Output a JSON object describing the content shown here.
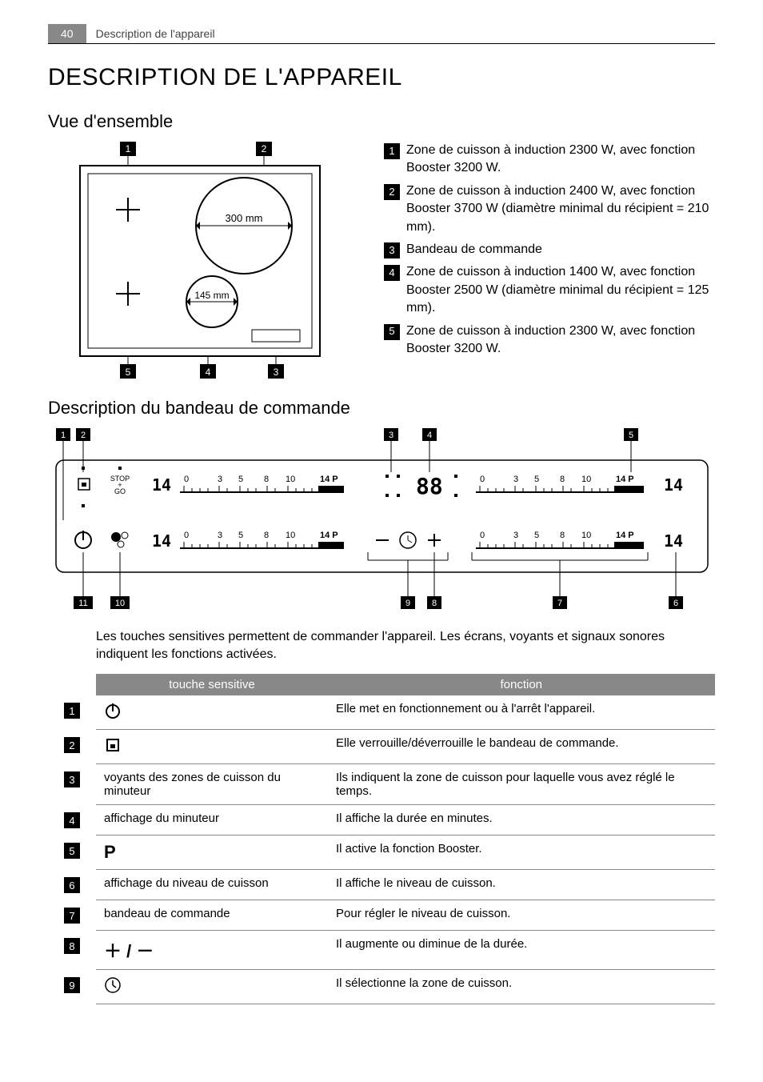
{
  "header": {
    "page_number": "40",
    "section_title": "Description de l'appareil"
  },
  "main_heading": "DESCRIPTION DE L'APPAREIL",
  "overview": {
    "heading": "Vue d'ensemble",
    "diagram": {
      "zone2_diameter": "300 mm",
      "zone4_diameter": "145 mm",
      "top_labels": [
        "1",
        "2"
      ],
      "bottom_labels": [
        "5",
        "4",
        "3"
      ]
    },
    "legend": [
      {
        "num": "1",
        "text": "Zone de cuisson à induction 2300 W, avec fonction Booster 3200 W."
      },
      {
        "num": "2",
        "text": "Zone de cuisson à induction 2400 W, avec fonction Booster 3700 W (diamètre minimal du récipient = 210 mm)."
      },
      {
        "num": "3",
        "text": "Bandeau de commande"
      },
      {
        "num": "4",
        "text": "Zone de cuisson à induction 1400 W, avec fonction Booster 2500 W (diamètre minimal du récipient = 125 mm)."
      },
      {
        "num": "5",
        "text": "Zone de cuisson à induction 2300 W, avec fonction Booster 3200 W."
      }
    ]
  },
  "panel": {
    "heading": "Description du bandeau de commande",
    "top_labels": [
      "1",
      "2",
      "3",
      "4",
      "5"
    ],
    "bottom_labels": [
      "11",
      "10",
      "9",
      "8",
      "7",
      "6"
    ],
    "scale_ticks": [
      "0",
      "3",
      "5",
      "8",
      "10",
      "14 P"
    ],
    "stop_go_label": "STOP\n+\nGO",
    "digit_display": "88",
    "seg_glyph": "14"
  },
  "intro": "Les touches sensitives permettent de commander l'appareil. Les écrans, voyants et signaux sonores indiquent les fonctions activées.",
  "table": {
    "columns": [
      "",
      "touche sensitive",
      "fonction"
    ],
    "rows": [
      {
        "num": "1",
        "symbol_type": "power",
        "symbol_text": "",
        "function": "Elle met en fonctionnement ou à l'arrêt l'appareil."
      },
      {
        "num": "2",
        "symbol_type": "lock",
        "symbol_text": "",
        "function": "Elle verrouille/déverrouille le bandeau de commande."
      },
      {
        "num": "3",
        "symbol_type": "text",
        "symbol_text": "voyants des zones de cuisson du minuteur",
        "function": "Ils indiquent la zone de cuisson pour laquelle vous avez réglé le temps."
      },
      {
        "num": "4",
        "symbol_type": "text",
        "symbol_text": "affichage du minuteur",
        "function": "Il affiche la durée en minutes."
      },
      {
        "num": "5",
        "symbol_type": "booster",
        "symbol_text": "P",
        "function": "Il active la fonction Booster."
      },
      {
        "num": "6",
        "symbol_type": "text",
        "symbol_text": "affichage du niveau de cuisson",
        "function": "Il affiche le niveau de cuisson."
      },
      {
        "num": "7",
        "symbol_type": "text",
        "symbol_text": "bandeau de commande",
        "function": "Pour régler le niveau de cuisson."
      },
      {
        "num": "8",
        "symbol_type": "plusminus",
        "symbol_text": "+ / −",
        "function": "Il augmente ou diminue de la durée."
      },
      {
        "num": "9",
        "symbol_type": "clock",
        "symbol_text": "",
        "function": "Il sélectionne la zone de cuisson."
      }
    ]
  },
  "colors": {
    "badge_bg": "#000000",
    "badge_fg": "#ffffff",
    "table_header_bg": "#888888",
    "border": "#888888"
  }
}
